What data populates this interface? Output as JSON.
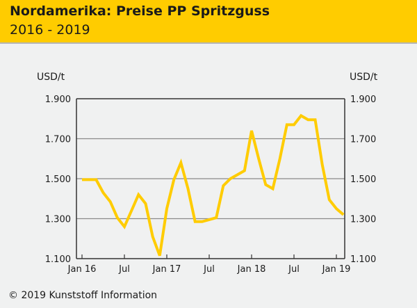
{
  "chart_data": {
    "type": "line",
    "title": "Nordamerika: Preise PP Spritzguss",
    "subtitle": "2016 - 2019",
    "ylabel_left": "USD/t",
    "ylabel_right": "USD/t",
    "ylim": [
      1100,
      1900
    ],
    "yticks": [
      1100,
      1300,
      1500,
      1700,
      1900
    ],
    "ytick_labels": [
      "1.100",
      "1.300",
      "1.500",
      "1.700",
      "1.900"
    ],
    "xtick_labels": [
      "Jan 16",
      "Jul",
      "Jan 17",
      "Jul",
      "Jan 18",
      "Jul",
      "Jan 19"
    ],
    "xtick_months": [
      0,
      6,
      12,
      18,
      24,
      30,
      36
    ],
    "grid": true,
    "series": [
      {
        "name": "PP Spritzguss",
        "color": "#ffcc00",
        "values": [
          1495,
          1495,
          1495,
          1430,
          1385,
          1305,
          1260,
          1340,
          1420,
          1375,
          1210,
          1115,
          1350,
          1495,
          1580,
          1450,
          1285,
          1285,
          1295,
          1305,
          1465,
          1500,
          1520,
          1540,
          1740,
          1600,
          1470,
          1450,
          1600,
          1770,
          1770,
          1815,
          1795,
          1795,
          1570,
          1395,
          1350,
          1320
        ]
      }
    ]
  },
  "footer": "© 2019 Kunststoff Information"
}
